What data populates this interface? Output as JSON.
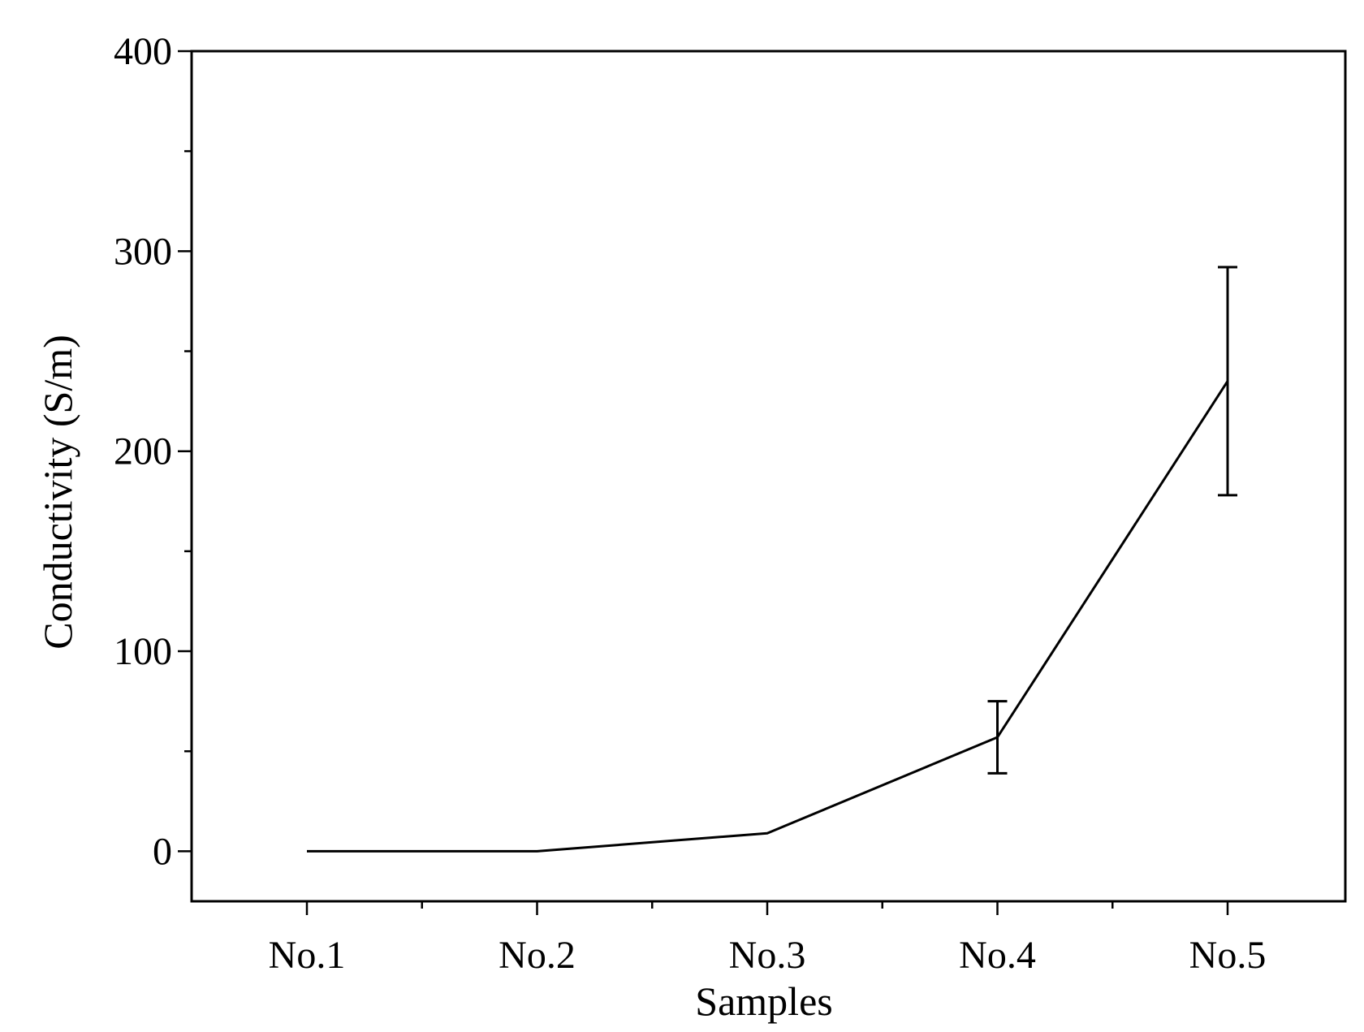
{
  "chart_data": {
    "type": "line",
    "title": "",
    "xlabel": "Samples",
    "ylabel": "Conductivity (S/m)",
    "categories": [
      "No.1",
      "No.2",
      "No.3",
      "No.4",
      "No.5"
    ],
    "values": [
      0,
      0,
      9,
      57,
      235
    ],
    "error": [
      0,
      0,
      0,
      18,
      57
    ],
    "ylim": [
      -25,
      400
    ],
    "yticks": [
      0,
      100,
      200,
      300,
      400
    ],
    "yminor_step": 50,
    "grid": false,
    "line_color": "#000000"
  }
}
